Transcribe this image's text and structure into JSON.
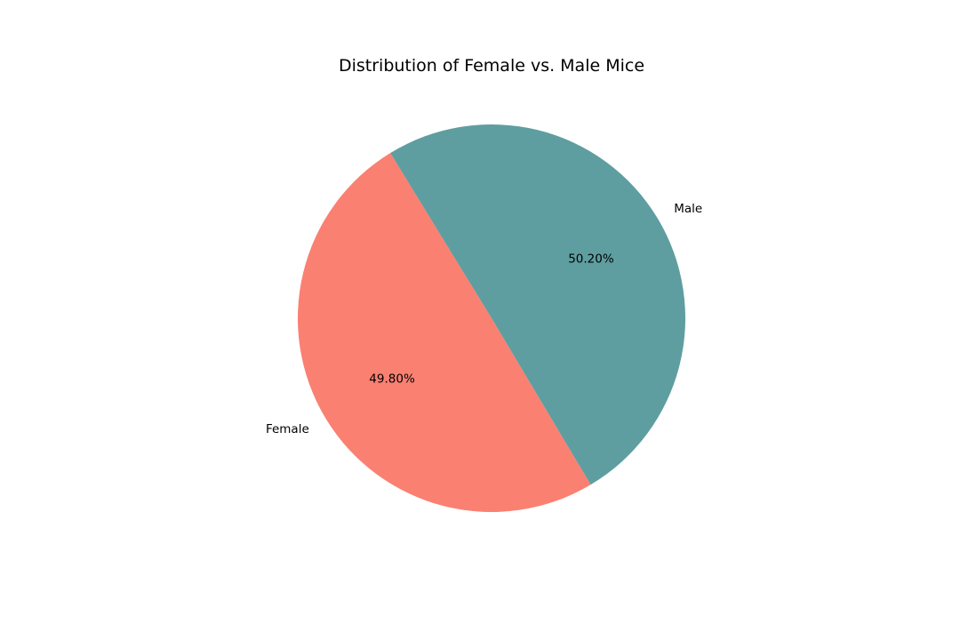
{
  "chart_data": {
    "type": "pie",
    "title": "Distribution of Female vs. Male Mice",
    "slices": [
      {
        "label": "Female",
        "value": 49.8,
        "pct_text": "49.80%",
        "color": "#fa8072"
      },
      {
        "label": "Male",
        "value": 50.2,
        "pct_text": "50.20%",
        "color": "#5f9ea0"
      }
    ],
    "legend": "none"
  }
}
